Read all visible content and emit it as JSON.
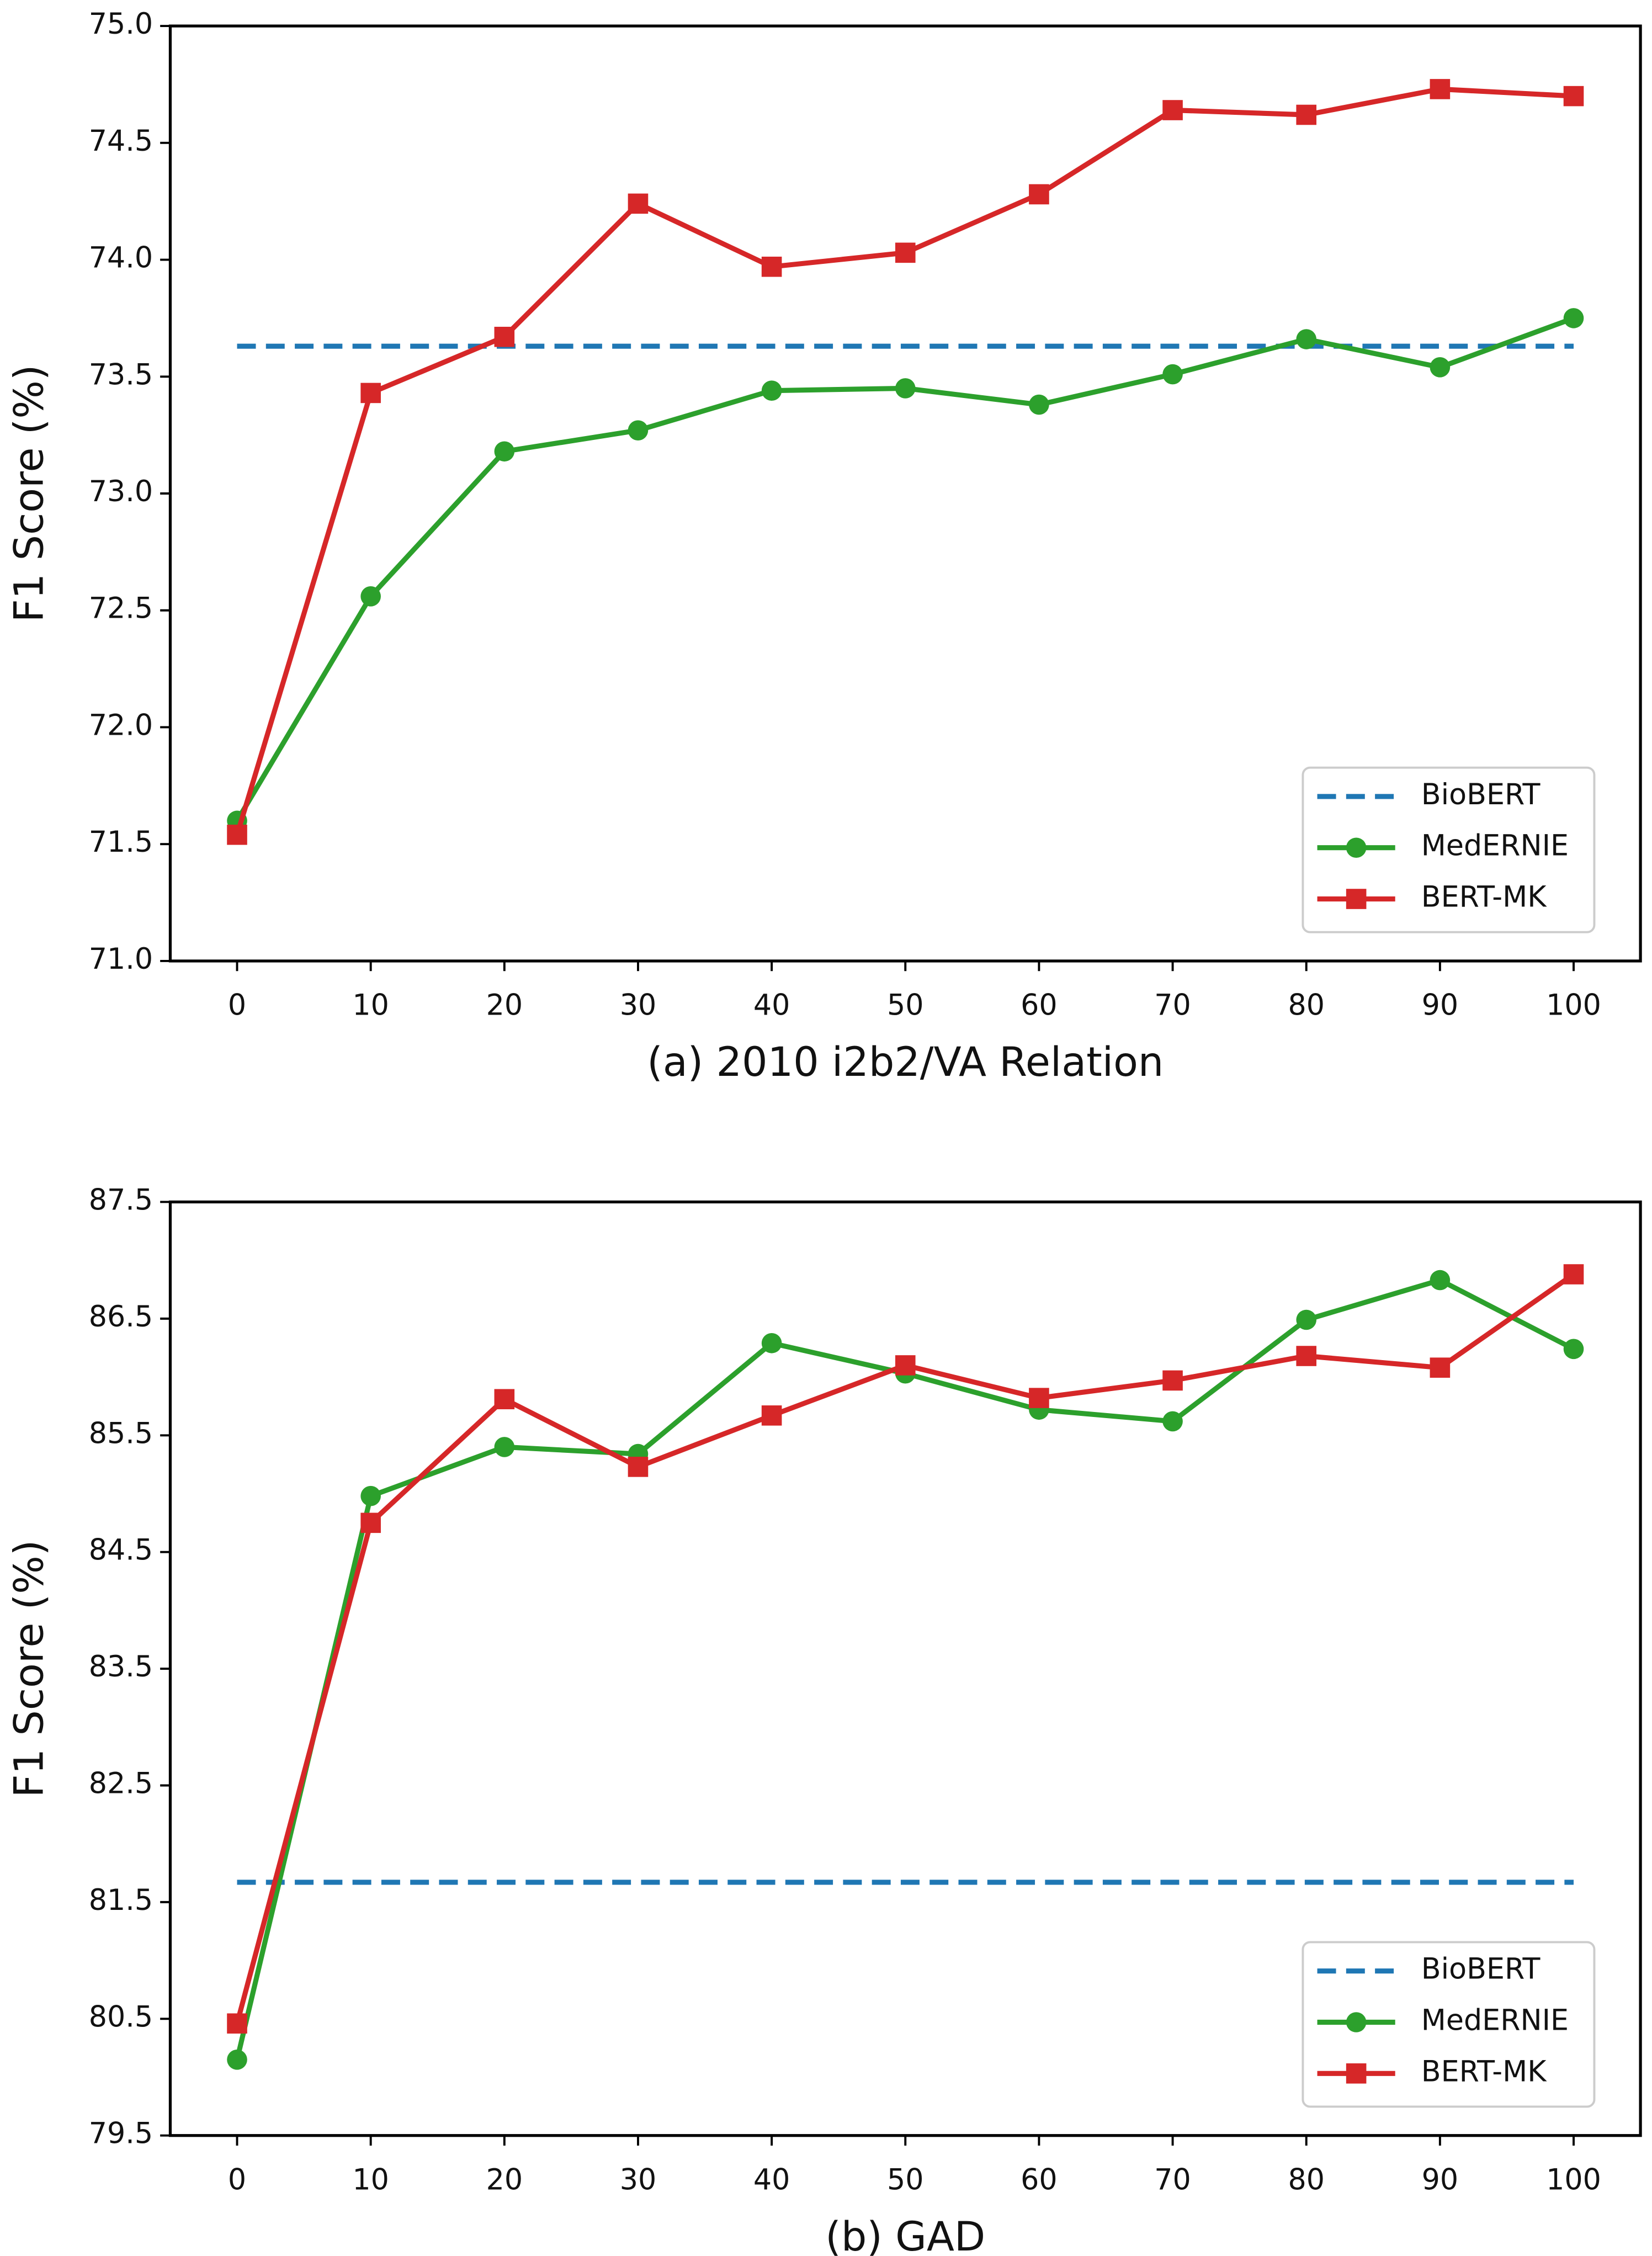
{
  "chart_data": [
    {
      "type": "line",
      "xlabel": "(a) 2010 i2b2/VA Relation",
      "ylabel": "F1 Score (%)",
      "x": [
        0,
        10,
        20,
        30,
        40,
        50,
        60,
        70,
        80,
        90,
        100
      ],
      "xlim": [
        -5,
        105
      ],
      "xticks": [
        0,
        10,
        20,
        30,
        40,
        50,
        60,
        70,
        80,
        90,
        100
      ],
      "ylim": [
        71,
        75
      ],
      "yticks": [
        {
          "value": 71,
          "label": "71.0"
        },
        71.5,
        {
          "value": 72,
          "label": "72.0"
        },
        72.5,
        {
          "value": 73,
          "label": "73.0"
        },
        73.5,
        {
          "value": 74,
          "label": "74.0"
        },
        74.5,
        {
          "value": 75,
          "label": "75.0"
        }
      ],
      "legend": "lower right",
      "series": [
        {
          "name": "BioBERT",
          "color": "#1f77b4",
          "style": "dashed",
          "marker": "none",
          "values": [
            73.63,
            73.63,
            73.63,
            73.63,
            73.63,
            73.63,
            73.63,
            73.63,
            73.63,
            73.63,
            73.63
          ]
        },
        {
          "name": "MedERNIE",
          "color": "#2ca02c",
          "style": "solid",
          "marker": "circle",
          "values": [
            71.6,
            72.56,
            73.18,
            73.27,
            73.44,
            73.45,
            73.38,
            73.51,
            73.66,
            73.54,
            73.75
          ]
        },
        {
          "name": "BERT-MK",
          "color": "#d62728",
          "style": "solid",
          "marker": "square",
          "values": [
            71.54,
            73.43,
            73.67,
            74.24,
            73.97,
            74.03,
            74.28,
            74.64,
            74.62,
            74.73,
            74.7
          ]
        }
      ]
    },
    {
      "type": "line",
      "xlabel": "(b) GAD",
      "ylabel": "F1 Score (%)",
      "x": [
        0,
        10,
        20,
        30,
        40,
        50,
        60,
        70,
        80,
        90,
        100
      ],
      "xlim": [
        -5,
        105
      ],
      "xticks": [
        0,
        10,
        20,
        30,
        40,
        50,
        60,
        70,
        80,
        90,
        100
      ],
      "ylim": [
        79.5,
        87.5
      ],
      "yticks": [
        79.5,
        80.5,
        81.5,
        82.5,
        83.5,
        84.5,
        85.5,
        86.5,
        87.5
      ],
      "legend": "lower right",
      "series": [
        {
          "name": "BioBERT",
          "color": "#1f77b4",
          "style": "dashed",
          "marker": "none",
          "values": [
            81.67,
            81.67,
            81.67,
            81.67,
            81.67,
            81.67,
            81.67,
            81.67,
            81.67,
            81.67,
            81.67
          ]
        },
        {
          "name": "MedERNIE",
          "color": "#2ca02c",
          "style": "solid",
          "marker": "circle",
          "values": [
            80.15,
            84.98,
            85.4,
            85.34,
            86.29,
            86.03,
            85.72,
            85.62,
            86.49,
            86.83,
            86.24
          ]
        },
        {
          "name": "BERT-MK",
          "color": "#d62728",
          "style": "solid",
          "marker": "square",
          "values": [
            80.46,
            84.75,
            85.81,
            85.23,
            85.67,
            86.1,
            85.82,
            85.97,
            86.18,
            86.08,
            86.88
          ]
        }
      ]
    }
  ]
}
